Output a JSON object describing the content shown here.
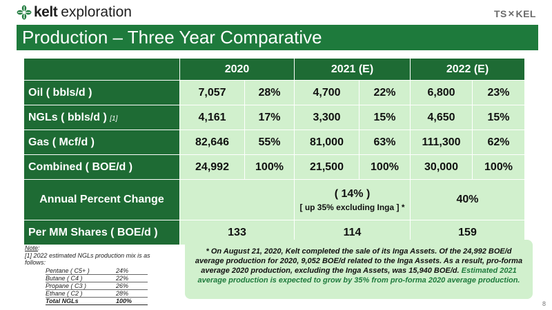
{
  "header": {
    "brand": "kelt",
    "word": "exploration",
    "exchange_left": "TS",
    "exchange_right": "KEL"
  },
  "title": "Production – Three Year Comparative",
  "table": {
    "years": [
      "2020",
      "2021 (E)",
      "2022 (E)"
    ],
    "rows": [
      {
        "label": "Oil ( bbls/d )",
        "foot": "",
        "values": [
          [
            "7,057",
            "28%"
          ],
          [
            "4,700",
            "22%"
          ],
          [
            "6,800",
            "23%"
          ]
        ]
      },
      {
        "label": "NGLs ( bbls/d )",
        "foot": "[1]",
        "values": [
          [
            "4,161",
            "17%"
          ],
          [
            "3,300",
            "15%"
          ],
          [
            "4,650",
            "15%"
          ]
        ]
      },
      {
        "label": "Gas ( Mcf/d )",
        "foot": "",
        "values": [
          [
            "82,646",
            "55%"
          ],
          [
            "81,000",
            "63%"
          ],
          [
            "111,300",
            "62%"
          ]
        ]
      },
      {
        "label": "Combined ( BOE/d )",
        "foot": "",
        "values": [
          [
            "24,992",
            "100%"
          ],
          [
            "21,500",
            "100%"
          ],
          [
            "30,000",
            "100%"
          ]
        ]
      }
    ],
    "annual": {
      "label": "Annual Percent Change",
      "y2021": "( 14% )",
      "y2021_note": "[ up 35% excluding Inga ] *",
      "y2022": "40%"
    },
    "per_share": {
      "label": "Per MM Shares ( BOE/d )",
      "values": [
        "133",
        "114",
        "159"
      ]
    }
  },
  "note": {
    "title": "Note",
    "colon": ":",
    "line": "[1] 2022 estimated NGLs production mix is as follows:",
    "mix": [
      {
        "name": "Pentane ( C5+ )",
        "pct": "24%"
      },
      {
        "name": "Butane ( C4 )",
        "pct": "22%"
      },
      {
        "name": "Propane ( C3 )",
        "pct": "26%"
      },
      {
        "name": "Ethane ( C2 )",
        "pct": "28%"
      }
    ],
    "total": {
      "name": "Total NGLs",
      "pct": "100%"
    }
  },
  "callout": {
    "part1": "* On August 21, 2020, Kelt completed the sale of its Inga Assets. Of the 24,992 BOE/d average production for 2020, 9,052 BOE/d related to the Inga Assets. As a result, pro-forma average 2020 production, excluding the Inga Assets, was 15,940 BOE/d.",
    "part2": "Estimated 2021 average production is expected to grow by 35% from pro-forma 2020 average production."
  },
  "page_number": "8",
  "colors": {
    "brand_green": "#1e7a3c",
    "table_header": "#1e6b34",
    "cell_fill": "#d1f0cd"
  },
  "icons": {
    "logo": "kelt-leaf-logo-icon",
    "exchange": "tsx-star-icon"
  }
}
